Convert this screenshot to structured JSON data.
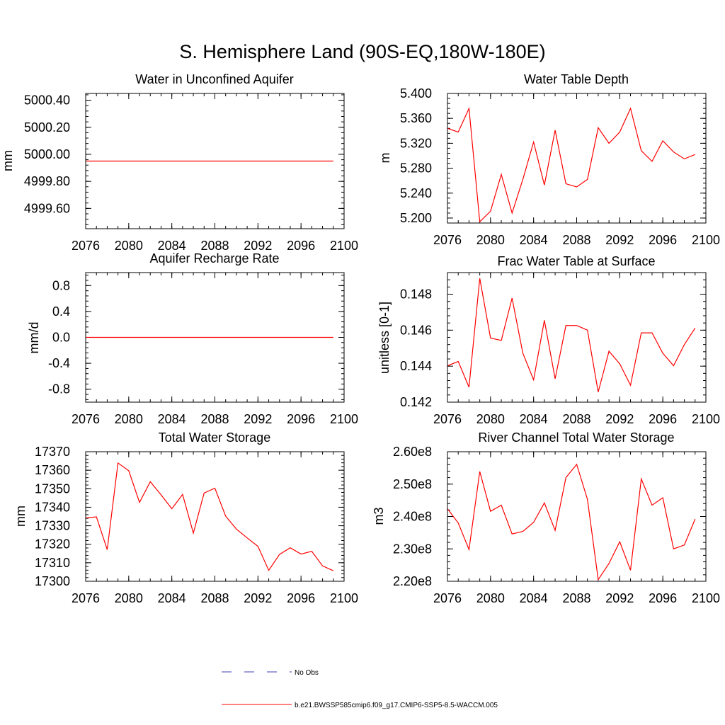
{
  "figure_title": "S. Hemisphere Land (90S-EQ,180W-180E)",
  "legend": {
    "entries": [
      {
        "label": "No Obs",
        "color": "#3f3fb8",
        "style": "dashed"
      },
      {
        "label": "b.e21.BWSSP585cmip6.f09_g17.CMIP6-SSP5-8.5-WACCM.005",
        "color": "#ff0000",
        "style": "solid"
      }
    ]
  },
  "chart_data": [
    {
      "type": "line",
      "title": "Water in Unconfined Aquifer",
      "xlabel": "",
      "ylabel": "mm",
      "xlim": [
        2076,
        2100
      ],
      "ylim": [
        4999.45,
        5000.45
      ],
      "xticks": [
        "2076",
        "2080",
        "2084",
        "2088",
        "2092",
        "2096",
        "2100"
      ],
      "yticks": [
        {
          "value": 4999.6,
          "label": "4999.60"
        },
        {
          "value": 4999.8,
          "label": "4999.80"
        },
        {
          "value": 5000.0,
          "label": "5000.00"
        },
        {
          "value": 5000.2,
          "label": "5000.20"
        },
        {
          "value": 5000.4,
          "label": "5000.40"
        }
      ],
      "yminor": 0.04,
      "x": [
        2076,
        2077,
        2078,
        2079,
        2080,
        2081,
        2082,
        2083,
        2084,
        2085,
        2086,
        2087,
        2088,
        2089,
        2090,
        2091,
        2092,
        2093,
        2094,
        2095,
        2096,
        2097,
        2098,
        2099
      ],
      "series": [
        {
          "color": "#ff0000",
          "values": [
            4999.95,
            4999.95,
            4999.95,
            4999.95,
            4999.95,
            4999.95,
            4999.95,
            4999.95,
            4999.95,
            4999.95,
            4999.95,
            4999.95,
            4999.95,
            4999.95,
            4999.95,
            4999.95,
            4999.95,
            4999.95,
            4999.95,
            4999.95,
            4999.95,
            4999.95,
            4999.95,
            4999.95
          ]
        }
      ]
    },
    {
      "type": "line",
      "title": "Water Table Depth",
      "xlabel": "",
      "ylabel": "m",
      "xlim": [
        2076,
        2100
      ],
      "ylim": [
        5.192,
        5.4
      ],
      "xticks": [
        "2076",
        "2080",
        "2084",
        "2088",
        "2092",
        "2096",
        "2100"
      ],
      "yticks": [
        {
          "value": 5.2,
          "label": "5.200"
        },
        {
          "value": 5.24,
          "label": "5.240"
        },
        {
          "value": 5.28,
          "label": "5.280"
        },
        {
          "value": 5.32,
          "label": "5.320"
        },
        {
          "value": 5.36,
          "label": "5.360"
        },
        {
          "value": 5.4,
          "label": "5.400"
        }
      ],
      "yminor": 0.008,
      "x": [
        2076,
        2077,
        2078,
        2079,
        2080,
        2081,
        2082,
        2083,
        2084,
        2085,
        2086,
        2087,
        2088,
        2089,
        2090,
        2091,
        2092,
        2093,
        2094,
        2095,
        2096,
        2097,
        2098,
        2099
      ],
      "series": [
        {
          "color": "#ff0000",
          "values": [
            5.344,
            5.338,
            5.376,
            5.194,
            5.211,
            5.27,
            5.208,
            5.262,
            5.322,
            5.253,
            5.341,
            5.255,
            5.25,
            5.262,
            5.345,
            5.32,
            5.338,
            5.376,
            5.308,
            5.291,
            5.324,
            5.306,
            5.295,
            5.302
          ]
        }
      ]
    },
    {
      "type": "line",
      "title": "Aquifer Recharge Rate",
      "xlabel": "",
      "ylabel": "mm/d",
      "xlim": [
        2076,
        2100
      ],
      "ylim": [
        -1.0,
        1.0
      ],
      "xticks": [
        "2076",
        "2080",
        "2084",
        "2088",
        "2092",
        "2096",
        "2100"
      ],
      "yticks": [
        {
          "value": -0.8,
          "label": "-0.8"
        },
        {
          "value": -0.4,
          "label": "-0.4"
        },
        {
          "value": 0.0,
          "label": "0.0"
        },
        {
          "value": 0.4,
          "label": "0.4"
        },
        {
          "value": 0.8,
          "label": "0.8"
        }
      ],
      "yminor": 0.08,
      "x": [
        2076,
        2077,
        2078,
        2079,
        2080,
        2081,
        2082,
        2083,
        2084,
        2085,
        2086,
        2087,
        2088,
        2089,
        2090,
        2091,
        2092,
        2093,
        2094,
        2095,
        2096,
        2097,
        2098,
        2099
      ],
      "series": [
        {
          "color": "#ff0000",
          "values": [
            0,
            0,
            0,
            0,
            0,
            0,
            0,
            0,
            0,
            0,
            0,
            0,
            0,
            0,
            0,
            0,
            0,
            0,
            0,
            0,
            0,
            0,
            0,
            0
          ]
        }
      ]
    },
    {
      "type": "line",
      "title": "Frac Water Table at Surface",
      "xlabel": "",
      "ylabel": "unitless [0-1]",
      "xlim": [
        2076,
        2100
      ],
      "ylim": [
        0.142,
        0.1492
      ],
      "xticks": [
        "2076",
        "2080",
        "2084",
        "2088",
        "2092",
        "2096",
        "2100"
      ],
      "yticks": [
        {
          "value": 0.142,
          "label": "0.142"
        },
        {
          "value": 0.144,
          "label": "0.144"
        },
        {
          "value": 0.146,
          "label": "0.146"
        },
        {
          "value": 0.148,
          "label": "0.148"
        }
      ],
      "yminor": 0.0004,
      "x": [
        2076,
        2077,
        2078,
        2079,
        2080,
        2081,
        2082,
        2083,
        2084,
        2085,
        2086,
        2087,
        2088,
        2089,
        2090,
        2091,
        2092,
        2093,
        2094,
        2095,
        2096,
        2097,
        2098,
        2099
      ],
      "series": [
        {
          "color": "#ff0000",
          "values": [
            0.14402,
            0.14426,
            0.14283,
            0.14888,
            0.14556,
            0.14543,
            0.14778,
            0.14472,
            0.14324,
            0.14655,
            0.1433,
            0.14626,
            0.14626,
            0.146,
            0.14256,
            0.14483,
            0.14413,
            0.14294,
            0.14585,
            0.14585,
            0.14472,
            0.14402,
            0.1452,
            0.14612
          ]
        }
      ]
    },
    {
      "type": "line",
      "title": "Total Water Storage",
      "xlabel": "",
      "ylabel": "mm",
      "xlim": [
        2076,
        2100
      ],
      "ylim": [
        17300,
        17370
      ],
      "xticks": [
        "2076",
        "2080",
        "2084",
        "2088",
        "2092",
        "2096",
        "2100"
      ],
      "yticks": [
        {
          "value": 17300,
          "label": "17300"
        },
        {
          "value": 17310,
          "label": "17310"
        },
        {
          "value": 17320,
          "label": "17320"
        },
        {
          "value": 17330,
          "label": "17330"
        },
        {
          "value": 17340,
          "label": "17340"
        },
        {
          "value": 17350,
          "label": "17350"
        },
        {
          "value": 17360,
          "label": "17360"
        },
        {
          "value": 17370,
          "label": "17370"
        }
      ],
      "yminor": 2,
      "x": [
        2076,
        2077,
        2078,
        2079,
        2080,
        2081,
        2082,
        2083,
        2084,
        2085,
        2086,
        2087,
        2088,
        2089,
        2090,
        2091,
        2092,
        2093,
        2094,
        2095,
        2096,
        2097,
        2098,
        2099
      ],
      "series": [
        {
          "color": "#ff0000",
          "values": [
            17334.2,
            17334.8,
            17317.1,
            17363.9,
            17359.7,
            17342.6,
            17353.8,
            17346.7,
            17339.2,
            17346.9,
            17326.0,
            17347.7,
            17350.3,
            17335.2,
            17328.2,
            17323.4,
            17318.9,
            17305.9,
            17314.5,
            17318.1,
            17314.7,
            17316.2,
            17308.3,
            17305.7
          ]
        }
      ]
    },
    {
      "type": "line",
      "title": "River Channel Total Water Storage",
      "xlabel": "",
      "ylabel": "m3",
      "xlim": [
        2076,
        2100
      ],
      "ylim": [
        220000000,
        260000000
      ],
      "xticks": [
        "2076",
        "2080",
        "2084",
        "2088",
        "2092",
        "2096",
        "2100"
      ],
      "yticks": [
        {
          "value": 220000000,
          "label": "2.20e8"
        },
        {
          "value": 230000000,
          "label": "2.30e8"
        },
        {
          "value": 240000000,
          "label": "2.40e8"
        },
        {
          "value": 250000000,
          "label": "2.50e8"
        },
        {
          "value": 260000000,
          "label": "2.60e8"
        }
      ],
      "yminor": 2000000,
      "x": [
        2076,
        2077,
        2078,
        2079,
        2080,
        2081,
        2082,
        2083,
        2084,
        2085,
        2086,
        2087,
        2088,
        2089,
        2090,
        2091,
        2092,
        2093,
        2094,
        2095,
        2096,
        2097,
        2098,
        2099
      ],
      "series": [
        {
          "color": "#ff0000",
          "values": [
            242400000,
            238000000,
            229800000,
            253900000,
            241600000,
            243500000,
            234600000,
            235400000,
            238200000,
            244200000,
            235700000,
            252000000,
            256100000,
            245300000,
            220500000,
            225500000,
            232200000,
            223400000,
            251600000,
            243500000,
            245800000,
            230000000,
            231200000,
            239200000
          ]
        }
      ]
    }
  ]
}
